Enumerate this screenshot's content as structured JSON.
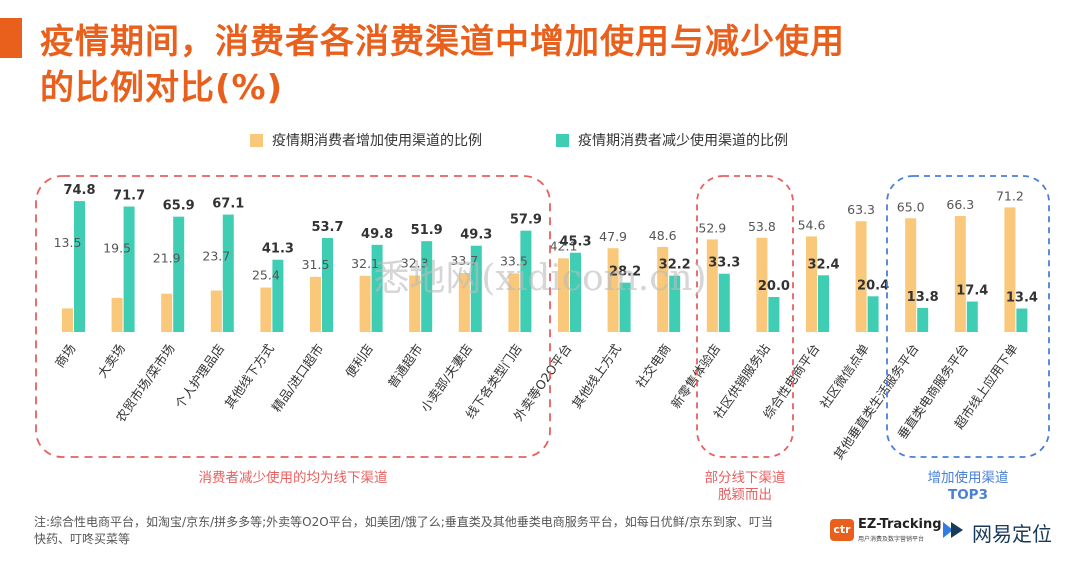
{
  "title": {
    "line1": "疫情期间，消费者各消费渠道中增加使用与减少使用",
    "line2": "的比例对比(%)"
  },
  "chart_data": {
    "type": "bar",
    "categories": [
      "商场",
      "大卖场",
      "农贸市场/菜市场",
      "个人护理品店",
      "其他线下方式",
      "精品/进口超市",
      "便利店",
      "普通超市",
      "小卖部/夫妻店",
      "线下各类型门店",
      "外卖等O2O平台",
      "其他线上方式",
      "社交电商",
      "新零售体验店",
      "社区供销服务站",
      "综合性电商平台",
      "社区微信点单",
      "其他垂直类生活服务平台",
      "垂直类电商服务平台",
      "超市线上应用下单"
    ],
    "series": [
      {
        "name": "疫情期消费者增加使用渠道的比例",
        "color": "#F9C87A",
        "values": [
          13.5,
          19.5,
          21.9,
          23.7,
          25.4,
          31.5,
          32.1,
          32.3,
          33.7,
          33.5,
          42.1,
          47.9,
          48.6,
          52.9,
          53.8,
          54.6,
          63.3,
          65.0,
          66.3,
          71.2
        ]
      },
      {
        "name": "疫情期消费者减少使用渠道的比例",
        "color": "#3FCDB3",
        "values": [
          74.8,
          71.7,
          65.9,
          67.1,
          41.3,
          53.7,
          49.8,
          51.9,
          49.3,
          57.9,
          45.3,
          28.2,
          32.2,
          33.3,
          20.0,
          32.4,
          20.4,
          13.8,
          17.4,
          13.4
        ]
      }
    ],
    "ylim": [
      0,
      80
    ],
    "labels_inc": [
      "13.5",
      "19.5",
      "21.9",
      "23.7",
      "25.4",
      "31.5",
      "32.1",
      "32.3",
      "33.7",
      "33.5",
      "42.1",
      "47.9",
      "48.6",
      "52.9",
      "53.8",
      "54.6",
      "63.3",
      "65.0",
      "66.3",
      "71.2"
    ],
    "labels_dec": [
      "74.8",
      "71.7",
      "65.9",
      "67.1",
      "41.3",
      "53.7",
      "49.8",
      "51.9",
      "49.3",
      "57.9",
      "45.3",
      "28.2",
      "32.2",
      "33.3",
      "20.0",
      "32.4",
      "20.4",
      "13.8",
      "17.4",
      "13.4"
    ],
    "groups": [
      {
        "label": "消费者减少使用的均为线下渠道",
        "from": 0,
        "to": 9,
        "color": "#E86060"
      },
      {
        "label": "部分线下渠道\n脱颖而出",
        "from": 13,
        "to": 14,
        "color": "#E86060"
      },
      {
        "label": "增加使用渠道\nTOP3",
        "from": 17,
        "to": 19,
        "color": "#4A7FD6"
      }
    ],
    "legend_position": "top",
    "grid": false
  },
  "watermark": "悉地网(xidicom.cn)",
  "note": "注:综合性电商平台，如淘宝/京东/拼多多等;外卖等O2O平台，如美团/饿了么;垂直类及其他垂类电商服务平台，如每日优鲜/京东到家、叮当快药、叮咚买菜等",
  "logos": {
    "ez_badge": "ctr",
    "ez_name": "EZ-Tracking",
    "ez_sub": "用户消费及数字营销平台",
    "netease": "网易定位"
  },
  "colors": {
    "title": "#E8601C",
    "increase": "#F9C87A",
    "decrease": "#3FCDB3"
  }
}
